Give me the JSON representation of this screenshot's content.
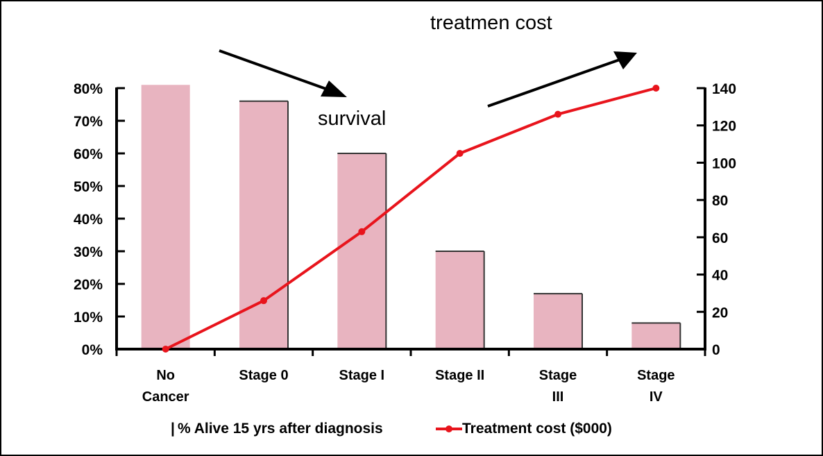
{
  "chart_data": {
    "type": "bar+line",
    "categories": [
      [
        "No",
        "Cancer"
      ],
      [
        "Stage 0"
      ],
      [
        "Stage I"
      ],
      [
        "Stage II"
      ],
      [
        "Stage",
        "III"
      ],
      [
        "Stage",
        "IV"
      ]
    ],
    "series": [
      {
        "name": "% Alive 15 yrs after diagnosis",
        "type": "bar",
        "axis": "left",
        "values": [
          81,
          76,
          60,
          30,
          17,
          8
        ]
      },
      {
        "name": "Treatment cost ($000)",
        "type": "line",
        "axis": "right",
        "values": [
          0,
          26,
          63,
          105,
          126,
          140
        ]
      }
    ],
    "left_axis": {
      "ylim": [
        0,
        80
      ],
      "ticks": [
        0,
        10,
        20,
        30,
        40,
        50,
        60,
        70,
        80
      ],
      "format": "percent"
    },
    "right_axis": {
      "ylim": [
        0,
        140
      ],
      "ticks": [
        0,
        20,
        40,
        60,
        80,
        100,
        120,
        140
      ]
    },
    "annotations": {
      "survival": "survival",
      "cost": "treatmen cost"
    },
    "legend": {
      "bar_label": "% Alive 15 yrs after diagnosis",
      "line_label": "Treatment cost ($000)",
      "bar_prefix": "|"
    },
    "colors": {
      "bar_fill": "#E8B4C0",
      "line": "#E8141C",
      "axis": "#000000"
    }
  }
}
